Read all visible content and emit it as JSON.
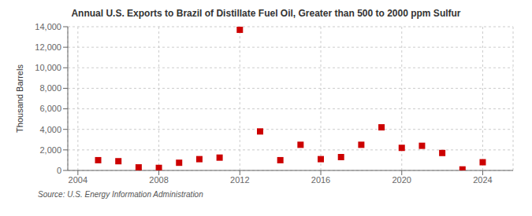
{
  "chart_data": {
    "type": "scatter",
    "title": "Annual U.S. Exports to Brazil of Distillate Fuel Oil, Greater than 500 to 2000 ppm Sulfur",
    "ylabel": "Thousand Barrels",
    "annotations": [
      "Source: U.S. Energy Information Administration"
    ],
    "x": [
      2005,
      2006,
      2007,
      2008,
      2009,
      2010,
      2011,
      2012,
      2013,
      2014,
      2015,
      2016,
      2017,
      2018,
      2019,
      2020,
      2021,
      2022,
      2023,
      2024
    ],
    "values": [
      1000,
      900,
      300,
      250,
      750,
      1100,
      1250,
      13700,
      3800,
      1000,
      2500,
      1100,
      1300,
      2500,
      4200,
      2200,
      2400,
      1700,
      100,
      800
    ],
    "color": "#cc0000",
    "marker": "square",
    "xlim": [
      2003.5,
      2025.5
    ],
    "xticks": [
      2004,
      2008,
      2012,
      2016,
      2020,
      2024
    ],
    "ylim": [
      0,
      14000
    ],
    "yticks": [
      0,
      {
        "value": 2000,
        "label": "2,000"
      },
      {
        "value": 4000,
        "label": "4,000"
      },
      {
        "value": 6000,
        "label": "6,000"
      },
      {
        "value": 8000,
        "label": "8,000"
      },
      {
        "value": 10000,
        "label": "10,000"
      },
      {
        "value": 12000,
        "label": "12,000"
      },
      {
        "value": 14000,
        "label": "14,000"
      }
    ],
    "grid": true
  }
}
